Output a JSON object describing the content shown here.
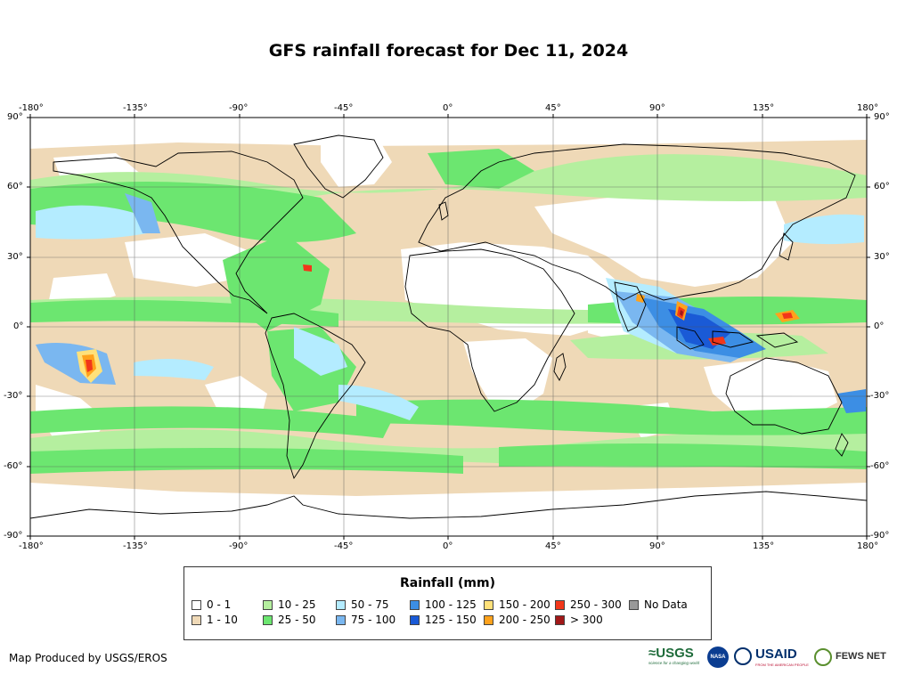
{
  "title": "GFS rainfall forecast for Dec 11, 2024",
  "map": {
    "lon_ticks": [
      "-180°",
      "-135°",
      "-90°",
      "-45°",
      "0°",
      "45°",
      "90°",
      "135°",
      "180°"
    ],
    "lat_ticks": [
      "90°",
      "60°",
      "30°",
      "0°",
      "-30°",
      "-60°",
      "-90°"
    ]
  },
  "legend": {
    "title": "Rainfall (mm)",
    "items": [
      {
        "label": "0 - 1",
        "color": "#ffffff"
      },
      {
        "label": "1 - 10",
        "color": "#efd9b7"
      },
      {
        "label": "10 - 25",
        "color": "#b5ef9f"
      },
      {
        "label": "25 - 50",
        "color": "#6ce670"
      },
      {
        "label": "50 - 75",
        "color": "#b4ecff"
      },
      {
        "label": "75 - 100",
        "color": "#7ab7f0"
      },
      {
        "label": "100 - 125",
        "color": "#3c8ee4"
      },
      {
        "label": "125 - 150",
        "color": "#1a5ad6"
      },
      {
        "label": "150 - 200",
        "color": "#ffe17a"
      },
      {
        "label": "200 - 250",
        "color": "#ffa21c"
      },
      {
        "label": "250 - 300",
        "color": "#f2371a"
      },
      {
        "label": "> 300",
        "color": "#a11818"
      },
      {
        "label": "No Data",
        "color": "#999999"
      }
    ]
  },
  "credit": "Map Produced by USGS/EROS",
  "logos": {
    "usgs": "≈USGS",
    "usgs_tagline": "science for a changing world",
    "nasa": "NASA",
    "usaid": "USAID",
    "usaid_tagline": "FROM THE AMERICAN PEOPLE",
    "fews": "FEWS NET"
  }
}
